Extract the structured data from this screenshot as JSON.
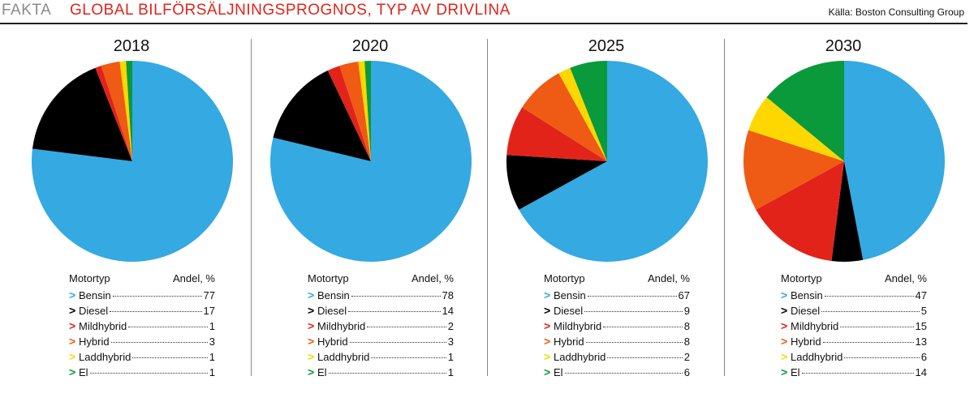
{
  "header": {
    "kicker": "FAKTA",
    "title": "GLOBAL BILFÖRSÄLJNINGSPROGNOS, TYP AV DRIVLINA",
    "source": "Källa: Boston Consulting Group"
  },
  "colors": {
    "Bensin": "#35a9e1",
    "Diesel": "#000000",
    "Mildhybrid": "#e2231a",
    "Hybrid": "#ef5a14",
    "Laddhybrid": "#ffd700",
    "El": "#0a9a3b"
  },
  "legend_header": {
    "col1": "Motortyp",
    "col2": "Andel, %"
  },
  "chart_data": [
    {
      "type": "pie",
      "title": "2018",
      "categories": [
        "Bensin",
        "Diesel",
        "Mildhybrid",
        "Hybrid",
        "Laddhybrid",
        "El"
      ],
      "values": [
        77,
        17,
        1,
        3,
        1,
        1
      ]
    },
    {
      "type": "pie",
      "title": "2020",
      "categories": [
        "Bensin",
        "Diesel",
        "Mildhybrid",
        "Hybrid",
        "Laddhybrid",
        "El"
      ],
      "values": [
        78,
        14,
        2,
        3,
        1,
        1
      ]
    },
    {
      "type": "pie",
      "title": "2025",
      "categories": [
        "Bensin",
        "Diesel",
        "Mildhybrid",
        "Hybrid",
        "Laddhybrid",
        "El"
      ],
      "values": [
        67,
        9,
        8,
        8,
        2,
        6
      ]
    },
    {
      "type": "pie",
      "title": "2030",
      "categories": [
        "Bensin",
        "Diesel",
        "Mildhybrid",
        "Hybrid",
        "Laddhybrid",
        "El"
      ],
      "values": [
        47,
        5,
        15,
        13,
        6,
        14
      ]
    }
  ]
}
